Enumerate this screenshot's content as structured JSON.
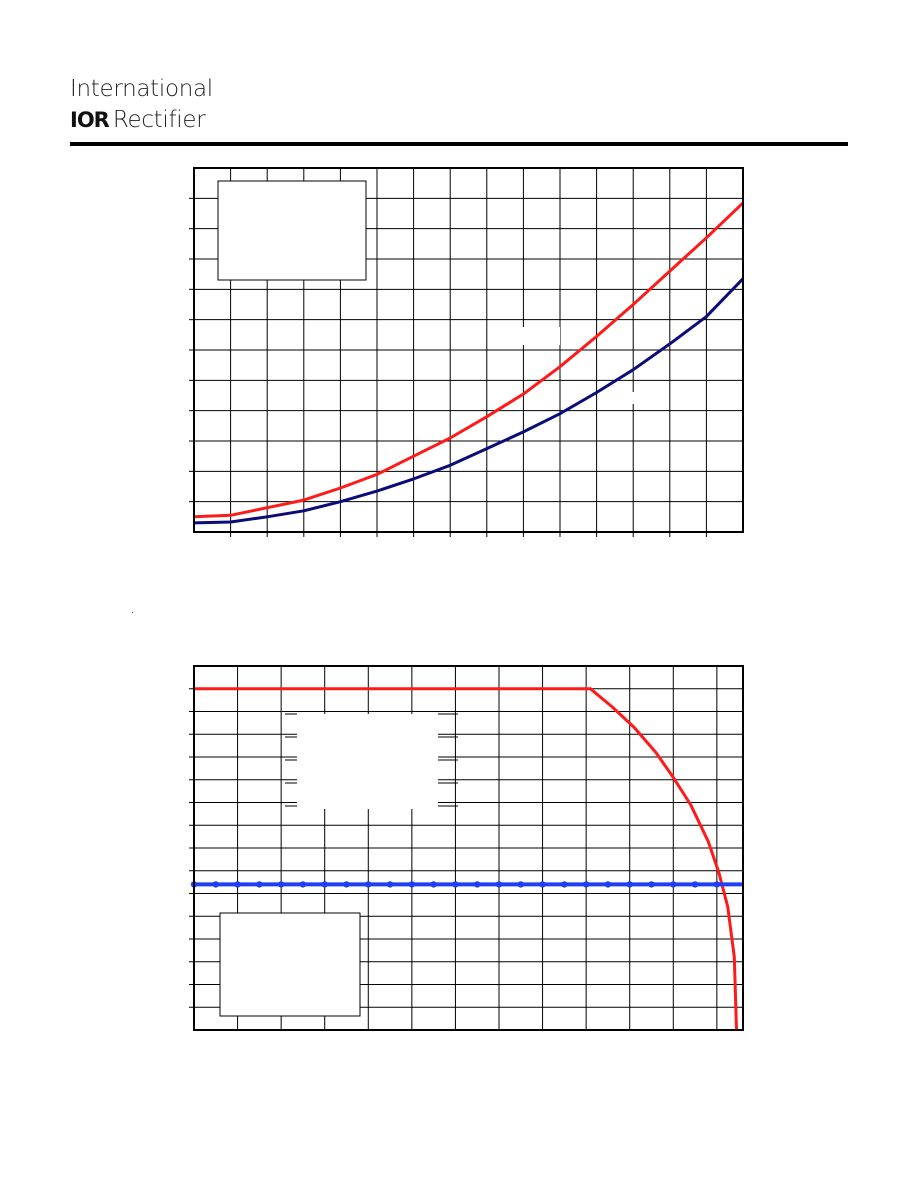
{
  "header": {
    "brand_line1": "International",
    "brand_mark": "IOR",
    "brand_line2": "Rectifier"
  },
  "colors": {
    "red_series": "#ff1a1a",
    "navy_series": "#0c0c78",
    "blue_series": "#1f3ff2",
    "grid": "#000000"
  },
  "chart_data": [
    {
      "type": "line",
      "title": "",
      "xlabel": "",
      "ylabel": "",
      "xlim": [
        0,
        15
      ],
      "ylim": [
        0,
        12
      ],
      "grid": true,
      "legend": "top-left (empty box)",
      "series": [
        {
          "color": "#ff1a1a",
          "x": [
            0,
            1,
            2,
            3,
            4,
            5,
            6,
            7,
            8,
            9,
            10,
            11,
            12,
            13,
            14,
            15
          ],
          "y": [
            0.5,
            0.55,
            0.8,
            1.05,
            1.45,
            1.9,
            2.5,
            3.1,
            3.8,
            4.55,
            5.45,
            6.45,
            7.5,
            8.6,
            9.7,
            10.85
          ]
        },
        {
          "color": "#0c0c78",
          "x": [
            0,
            1,
            2,
            3,
            4,
            5,
            6,
            7,
            8,
            9,
            10,
            11,
            12,
            13,
            14,
            15
          ],
          "y": [
            0.3,
            0.33,
            0.5,
            0.7,
            1.0,
            1.35,
            1.75,
            2.2,
            2.75,
            3.3,
            3.9,
            4.6,
            5.35,
            6.2,
            7.1,
            8.35
          ]
        }
      ]
    },
    {
      "type": "line",
      "title": "",
      "xlabel": "",
      "ylabel": "",
      "xlim": [
        0,
        12.6
      ],
      "ylim": [
        0,
        16
      ],
      "grid": true,
      "legend": "bottom-left (empty box)",
      "series": [
        {
          "color": "#ff1a1a",
          "x": [
            0,
            9.1,
            9.6,
            10.1,
            10.6,
            11.0,
            11.4,
            11.8,
            12.05,
            12.25,
            12.4,
            12.45
          ],
          "y": [
            15.0,
            15.0,
            14.2,
            13.3,
            12.2,
            11.1,
            9.9,
            8.3,
            6.9,
            5.4,
            3.2,
            0.0
          ]
        },
        {
          "color": "#1f3ff2",
          "markers": true,
          "x": [
            0,
            0.5,
            1,
            1.5,
            2,
            2.5,
            3,
            3.5,
            4,
            4.5,
            5,
            5.5,
            6,
            6.5,
            7,
            7.5,
            8,
            8.5,
            9,
            9.5,
            10,
            10.5,
            11,
            11.5,
            12,
            12.6
          ],
          "y": [
            6.4,
            6.4,
            6.4,
            6.4,
            6.4,
            6.4,
            6.4,
            6.4,
            6.4,
            6.4,
            6.4,
            6.4,
            6.4,
            6.4,
            6.4,
            6.4,
            6.4,
            6.4,
            6.4,
            6.4,
            6.4,
            6.4,
            6.4,
            6.4,
            6.4,
            6.4
          ]
        }
      ]
    }
  ]
}
